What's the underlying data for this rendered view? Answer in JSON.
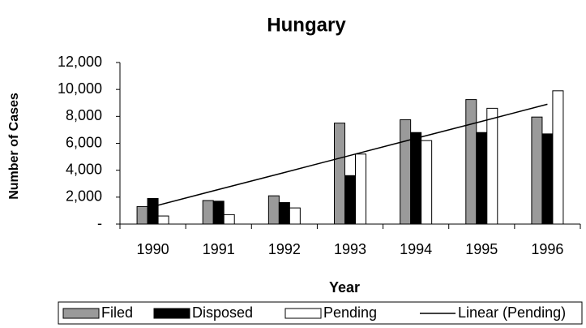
{
  "chart_data": {
    "type": "bar",
    "title": "Hungary",
    "x_label": "Year",
    "y_label": "Number of Cases",
    "categories": [
      "1990",
      "1991",
      "1992",
      "1993",
      "1994",
      "1995",
      "1996"
    ],
    "series": [
      {
        "name": "Filed",
        "color": "#9a9a9a",
        "values": [
          1300,
          1750,
          2100,
          7500,
          7750,
          9250,
          7950
        ]
      },
      {
        "name": "Disposed",
        "color": "#000000",
        "values": [
          1900,
          1700,
          1600,
          3600,
          6800,
          6800,
          6700
        ]
      },
      {
        "name": "Pending",
        "color": "#ffffff",
        "values": [
          600,
          700,
          1200,
          5200,
          6200,
          8600,
          9900
        ]
      },
      {
        "name": "Linear (Pending)",
        "type": "line",
        "color": "#000000",
        "values": [
          1300,
          2570,
          3830,
          5100,
          6370,
          7630,
          8900
        ]
      }
    ],
    "ylim": [
      0,
      12000
    ],
    "yticks": [
      {
        "value": 0,
        "label": "-"
      },
      {
        "value": 2000,
        "label": "2,000"
      },
      {
        "value": 4000,
        "label": "4,000"
      },
      {
        "value": 6000,
        "label": "6,000"
      },
      {
        "value": 8000,
        "label": "8,000"
      },
      {
        "value": 10000,
        "label": "10,000"
      },
      {
        "value": 12000,
        "label": "12,000"
      }
    ],
    "grid": false
  }
}
